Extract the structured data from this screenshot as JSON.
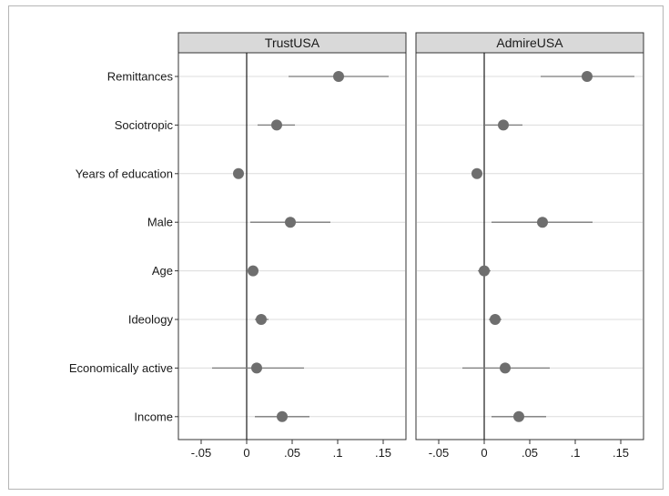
{
  "chart_data": {
    "type": "scatter",
    "subtype": "coefficient-plot",
    "title": "",
    "xlabel": "",
    "ylabel": "",
    "xlim": [
      -0.075,
      0.175
    ],
    "xticks": [
      -0.05,
      0,
      0.05,
      0.1,
      0.15
    ],
    "xtick_labels": [
      "-.05",
      "0",
      ".05",
      ".1",
      ".15"
    ],
    "grid": true,
    "reference_line_x": 0,
    "categories": [
      "Remittances",
      "Sociotropic",
      "Years of education",
      "Male",
      "Age",
      "Ideology",
      "Economically active",
      "Income"
    ],
    "marker_color": "#6e6e6e",
    "ci_color": "#7a7a7a",
    "panel_header_color": "#d9d9d9",
    "panels": [
      {
        "name": "TrustUSA",
        "estimates": [
          0.101,
          0.033,
          -0.009,
          0.048,
          0.007,
          0.016,
          0.011,
          0.039
        ],
        "ci_low": [
          0.046,
          0.012,
          -0.014,
          0.004,
          0.003,
          0.009,
          -0.038,
          0.009
        ],
        "ci_high": [
          0.156,
          0.053,
          -0.004,
          0.092,
          0.012,
          0.024,
          0.063,
          0.069
        ]
      },
      {
        "name": "AdmireUSA",
        "estimates": [
          0.113,
          0.021,
          -0.008,
          0.064,
          0.0,
          0.012,
          0.023,
          0.038
        ],
        "ci_low": [
          0.062,
          0.0,
          -0.012,
          0.008,
          -0.007,
          0.005,
          -0.024,
          0.008
        ],
        "ci_high": [
          0.165,
          0.042,
          -0.003,
          0.119,
          0.007,
          0.019,
          0.072,
          0.068
        ]
      }
    ]
  }
}
